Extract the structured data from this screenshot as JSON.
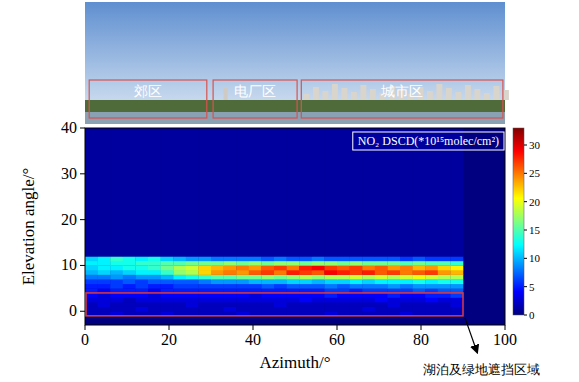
{
  "chart_data": {
    "type": "heatmap",
    "x_label": "Azimuth/°",
    "y_label": "Elevation angle/°",
    "xlim": [
      0,
      100
    ],
    "ylim": [
      -3,
      40
    ],
    "xticks": [
      0,
      20,
      40,
      60,
      80,
      100
    ],
    "yticks": [
      0,
      10,
      20,
      30,
      40
    ],
    "x_edges": [
      0,
      3,
      6,
      9,
      12,
      15,
      18,
      21,
      24,
      27,
      30,
      33,
      36,
      39,
      42,
      45,
      48,
      51,
      54,
      57,
      60,
      63,
      66,
      69,
      72,
      75,
      78,
      81,
      84,
      87,
      90
    ],
    "y_edges": [
      -1,
      0,
      1,
      2,
      3,
      4,
      5,
      6,
      7,
      8,
      9,
      10,
      11,
      12,
      40
    ],
    "cells": [
      [
        2,
        2,
        3,
        2,
        2,
        2,
        3,
        2,
        2,
        2,
        2,
        2,
        3,
        2,
        2,
        2,
        2,
        2,
        2,
        3,
        2,
        2,
        2,
        2,
        2,
        3,
        2,
        2,
        2,
        2
      ],
      [
        2,
        2,
        2,
        2,
        3,
        2,
        2,
        2,
        2,
        2,
        2,
        3,
        2,
        2,
        2,
        2,
        2,
        2,
        2,
        2,
        2,
        2,
        3,
        2,
        2,
        2,
        2,
        2,
        2,
        2
      ],
      [
        2,
        3,
        2,
        2,
        2,
        2,
        2,
        2,
        3,
        2,
        2,
        2,
        2,
        2,
        2,
        3,
        2,
        2,
        2,
        2,
        2,
        2,
        2,
        2,
        3,
        2,
        2,
        2,
        2,
        3
      ],
      [
        3,
        3,
        3,
        2,
        3,
        3,
        3,
        3,
        3,
        3,
        3,
        3,
        3,
        3,
        3,
        3,
        3,
        4,
        3,
        3,
        3,
        3,
        3,
        4,
        3,
        3,
        3,
        4,
        3,
        3
      ],
      [
        4,
        3,
        4,
        4,
        4,
        3,
        4,
        4,
        4,
        4,
        4,
        4,
        4,
        3,
        4,
        4,
        4,
        4,
        4,
        5,
        4,
        4,
        4,
        4,
        5,
        4,
        4,
        5,
        5,
        6
      ],
      [
        5,
        4,
        5,
        5,
        5,
        4,
        5,
        5,
        5,
        5,
        5,
        5,
        5,
        5,
        5,
        5,
        5,
        5,
        5,
        6,
        6,
        5,
        6,
        6,
        6,
        6,
        7,
        6,
        7,
        7
      ],
      [
        5,
        5,
        6,
        5,
        6,
        5,
        5,
        6,
        6,
        6,
        6,
        6,
        6,
        6,
        7,
        6,
        7,
        7,
        7,
        8,
        7,
        8,
        8,
        8,
        9,
        8,
        9,
        9,
        9,
        9
      ],
      [
        6,
        6,
        6,
        7,
        6,
        7,
        7,
        7,
        7,
        8,
        9,
        9,
        9,
        10,
        10,
        10,
        11,
        11,
        10,
        11,
        11,
        12,
        11,
        12,
        12,
        12,
        13,
        12,
        13,
        13
      ],
      [
        8,
        8,
        9,
        8,
        9,
        9,
        10,
        12,
        13,
        14,
        15,
        15,
        16,
        16,
        17,
        16,
        17,
        18,
        17,
        18,
        18,
        19,
        18,
        19,
        18,
        19,
        20,
        19,
        18,
        18
      ],
      [
        10,
        11,
        10,
        11,
        12,
        12,
        14,
        17,
        18,
        22,
        24,
        25,
        24,
        26,
        27,
        25,
        28,
        27,
        26,
        29,
        28,
        27,
        28,
        26,
        27,
        25,
        26,
        27,
        24,
        23
      ],
      [
        11,
        12,
        12,
        13,
        13,
        14,
        16,
        18,
        19,
        22,
        23,
        24,
        25,
        24,
        26,
        27,
        25,
        28,
        29,
        27,
        26,
        27,
        25,
        26,
        24,
        25,
        23,
        24,
        22,
        21
      ],
      [
        12,
        12,
        13,
        13,
        14,
        14,
        15,
        15,
        16,
        16,
        16,
        17,
        16,
        17,
        16,
        17,
        17,
        16,
        17,
        17,
        16,
        17,
        16,
        16,
        16,
        15,
        16,
        15,
        15,
        14
      ],
      [
        11,
        12,
        14,
        13,
        12,
        13,
        11,
        10,
        9,
        9,
        8,
        8,
        8,
        8,
        7,
        8,
        7,
        7,
        8,
        7,
        7,
        7,
        7,
        7,
        7,
        6,
        7,
        6,
        6,
        6
      ],
      [
        1,
        1,
        1,
        1,
        1,
        1,
        1,
        1,
        1,
        1,
        1,
        1,
        1,
        1,
        1,
        1,
        1,
        1,
        1,
        1,
        1,
        1,
        1,
        1,
        1,
        1,
        1,
        1,
        1,
        1
      ]
    ],
    "colorbar": {
      "title": "NO₂ DSCD(*10¹⁵molec/cm²)",
      "range": [
        0,
        33
      ],
      "ticks": [
        0,
        5,
        10,
        15,
        20,
        25,
        30
      ]
    },
    "photo_labels": [
      "郊区",
      "电厂区",
      "城市区"
    ],
    "annotation": "湖泊及绿地遮挡区域",
    "annotation_region": {
      "x": [
        0,
        90
      ],
      "y": [
        -1,
        4
      ]
    }
  }
}
